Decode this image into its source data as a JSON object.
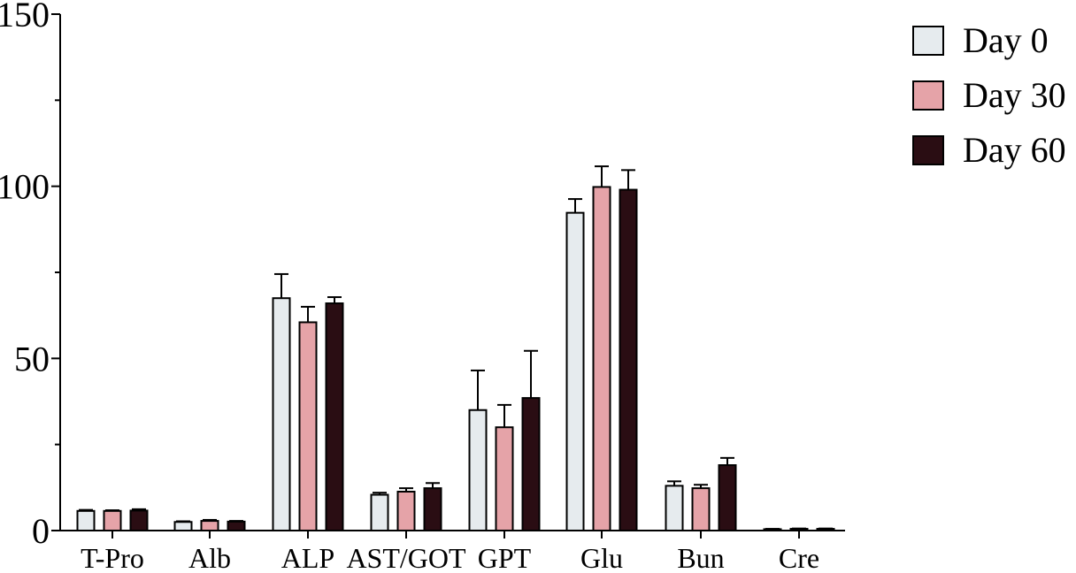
{
  "chart_data": {
    "type": "bar",
    "title": "",
    "xlabel": "",
    "ylabel": "",
    "ylim": [
      0,
      150
    ],
    "yticks": [
      0,
      50,
      100,
      150
    ],
    "categories": [
      "T-Pro",
      "Alb",
      "ALP",
      "AST/GOT",
      "GPT",
      "Glu",
      "Bun",
      "Cre"
    ],
    "series": [
      {
        "name": "Day 0",
        "color": "#e6ebee",
        "values": [
          5.7,
          2.5,
          67.5,
          10.4,
          35.0,
          92.3,
          13.0,
          0.4
        ],
        "errors": [
          0.3,
          0.2,
          7.0,
          0.6,
          11.5,
          4.0,
          1.3,
          0.1
        ]
      },
      {
        "name": "Day 30",
        "color": "#e5a3a8",
        "values": [
          5.7,
          2.8,
          60.5,
          11.3,
          30.0,
          99.8,
          12.3,
          0.5
        ],
        "errors": [
          0.2,
          0.3,
          4.5,
          1.0,
          6.5,
          6.0,
          1.0,
          0.1
        ]
      },
      {
        "name": "Day 60",
        "color": "#2a0d13",
        "values": [
          5.8,
          2.6,
          66.0,
          12.3,
          38.5,
          99.0,
          19.0,
          0.5
        ],
        "errors": [
          0.4,
          0.2,
          1.8,
          1.5,
          13.7,
          5.7,
          2.1,
          0.1
        ]
      }
    ],
    "legend_position": "top-right",
    "grid": false
  }
}
